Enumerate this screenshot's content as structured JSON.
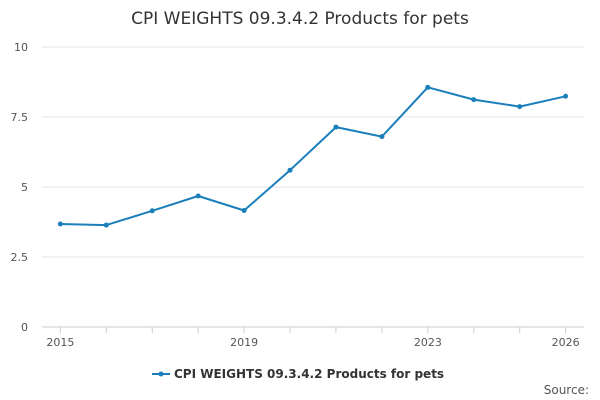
{
  "chart_data": {
    "type": "line",
    "title": "CPI WEIGHTS 09.3.4.2 Products for pets",
    "x": [
      2015,
      2016,
      2017,
      2018,
      2019,
      2020,
      2021,
      2022,
      2023,
      2024,
      2025,
      2026
    ],
    "series": [
      {
        "name": "CPI WEIGHTS 09.3.4.2 Products for pets",
        "color": "#1a7fbb",
        "values": [
          3.68,
          3.64,
          4.15,
          4.68,
          4.16,
          5.6,
          7.14,
          6.8,
          8.56,
          8.12,
          7.87,
          8.24
        ]
      }
    ],
    "x_tick_labels": [
      "2015",
      "2019",
      "2023",
      "2026"
    ],
    "x_tick_values": [
      2015,
      2019,
      2023,
      2026
    ],
    "y_tick_labels": [
      "0",
      "2.5",
      "5",
      "7.5",
      "10"
    ],
    "y_tick_values": [
      0,
      2.5,
      5,
      7.5,
      10
    ],
    "ylim": [
      0,
      10
    ],
    "xlabel": "",
    "ylabel": "",
    "legend_position": "bottom-center",
    "grid": true,
    "source_label": "Source:"
  }
}
